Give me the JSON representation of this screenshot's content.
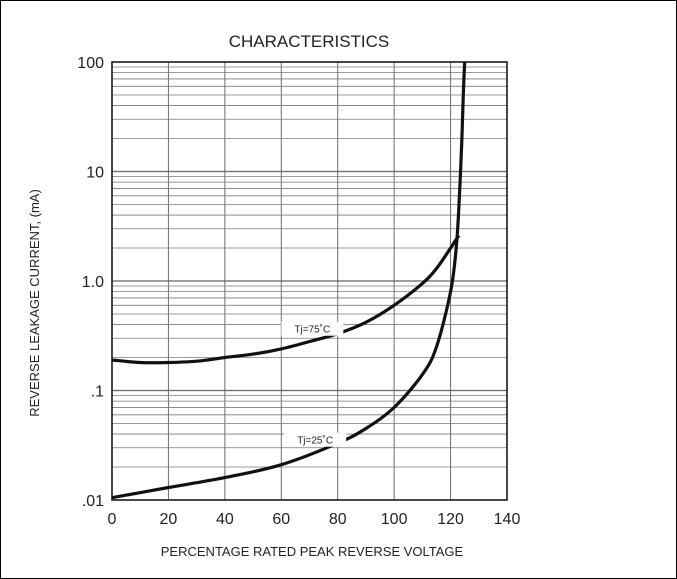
{
  "chart_data": {
    "type": "line",
    "title": "CHARACTERISTICS",
    "xlabel": "PERCENTAGE RATED PEAK REVERSE VOLTAGE",
    "ylabel": "REVERSE LEAKAGE CURRENT, (mA)",
    "xlim": [
      0,
      140
    ],
    "ylim": [
      0.01,
      100
    ],
    "y_scale": "log",
    "grid": true,
    "x_ticks": [
      0,
      20,
      40,
      60,
      80,
      100,
      120,
      140
    ],
    "x_tick_labels": [
      "0",
      "20",
      "40",
      "60",
      "80",
      "100",
      "120",
      "140"
    ],
    "y_ticks": [
      0.01,
      0.1,
      1,
      10,
      100
    ],
    "y_tick_labels": [
      ".01",
      ".1",
      "1.0",
      "10",
      "100"
    ],
    "series": [
      {
        "name": "Tj=75˚C",
        "x": [
          0,
          10,
          20,
          30,
          40,
          50,
          60,
          70,
          80,
          90,
          100,
          110,
          115,
          120,
          122,
          123
        ],
        "y": [
          0.19,
          0.18,
          0.18,
          0.185,
          0.2,
          0.215,
          0.24,
          0.28,
          0.33,
          0.42,
          0.6,
          0.95,
          1.3,
          2.0,
          2.4,
          2.6
        ]
      },
      {
        "name": "Tj=25˚C",
        "x": [
          0,
          20,
          40,
          60,
          80,
          90,
          100,
          110,
          115,
          120,
          122,
          123,
          124,
          124.5,
          125
        ],
        "y": [
          0.0105,
          0.013,
          0.016,
          0.021,
          0.033,
          0.045,
          0.07,
          0.14,
          0.25,
          0.8,
          2.0,
          5.0,
          20,
          50,
          100
        ]
      }
    ]
  }
}
